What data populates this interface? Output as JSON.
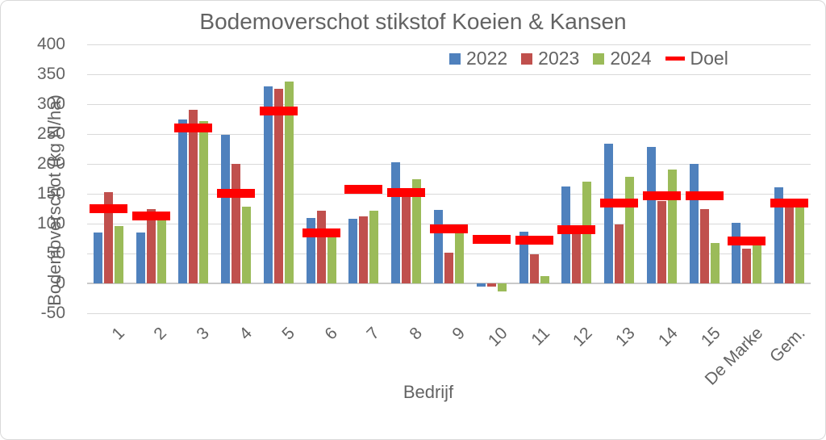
{
  "chart_data": {
    "type": "bar",
    "title": "Bodemoverschot stikstof Koeien & Kansen",
    "xlabel": "Bedrijf",
    "ylabel": "Bodemoverschot (kg N/ha)",
    "ylim": [
      -50,
      400
    ],
    "yticks": [
      400,
      350,
      300,
      250,
      200,
      150,
      100,
      50,
      0,
      -50
    ],
    "grid": true,
    "legend_position": "top",
    "categories": [
      "1",
      "2",
      "3",
      "4",
      "5",
      "6",
      "7",
      "8",
      "9",
      "10",
      "11",
      "12",
      "13",
      "14",
      "15",
      "De Marke",
      "Gem."
    ],
    "series": [
      {
        "name": "2022",
        "color": "#4F81BD",
        "values": [
          85,
          85,
          275,
          249,
          330,
          109,
          108,
          203,
          123,
          -5,
          87,
          162,
          234,
          228,
          200,
          101,
          161
        ]
      },
      {
        "name": "2023",
        "color": "#C0504D",
        "values": [
          153,
          124,
          290,
          200,
          326,
          122,
          112,
          150,
          51,
          -5,
          49,
          90,
          98,
          138,
          124,
          58,
          137
        ]
      },
      {
        "name": "2024",
        "color": "#9BBB59",
        "values": [
          96,
          108,
          271,
          128,
          338,
          79,
          122,
          175,
          85,
          -13,
          12,
          170,
          178,
          190,
          68,
          64,
          133
        ]
      }
    ],
    "target_series": {
      "name": "Doel",
      "color": "#FF0000",
      "marker": "dash",
      "values": [
        125,
        113,
        260,
        151,
        288,
        84,
        157,
        152,
        91,
        74,
        72,
        90,
        134,
        146,
        146,
        71,
        134
      ]
    },
    "colors": {
      "text": "#636363",
      "gridline": "#D9D9D9",
      "zero_line": "#C9C9C9",
      "background": "#FFFFFF"
    }
  }
}
